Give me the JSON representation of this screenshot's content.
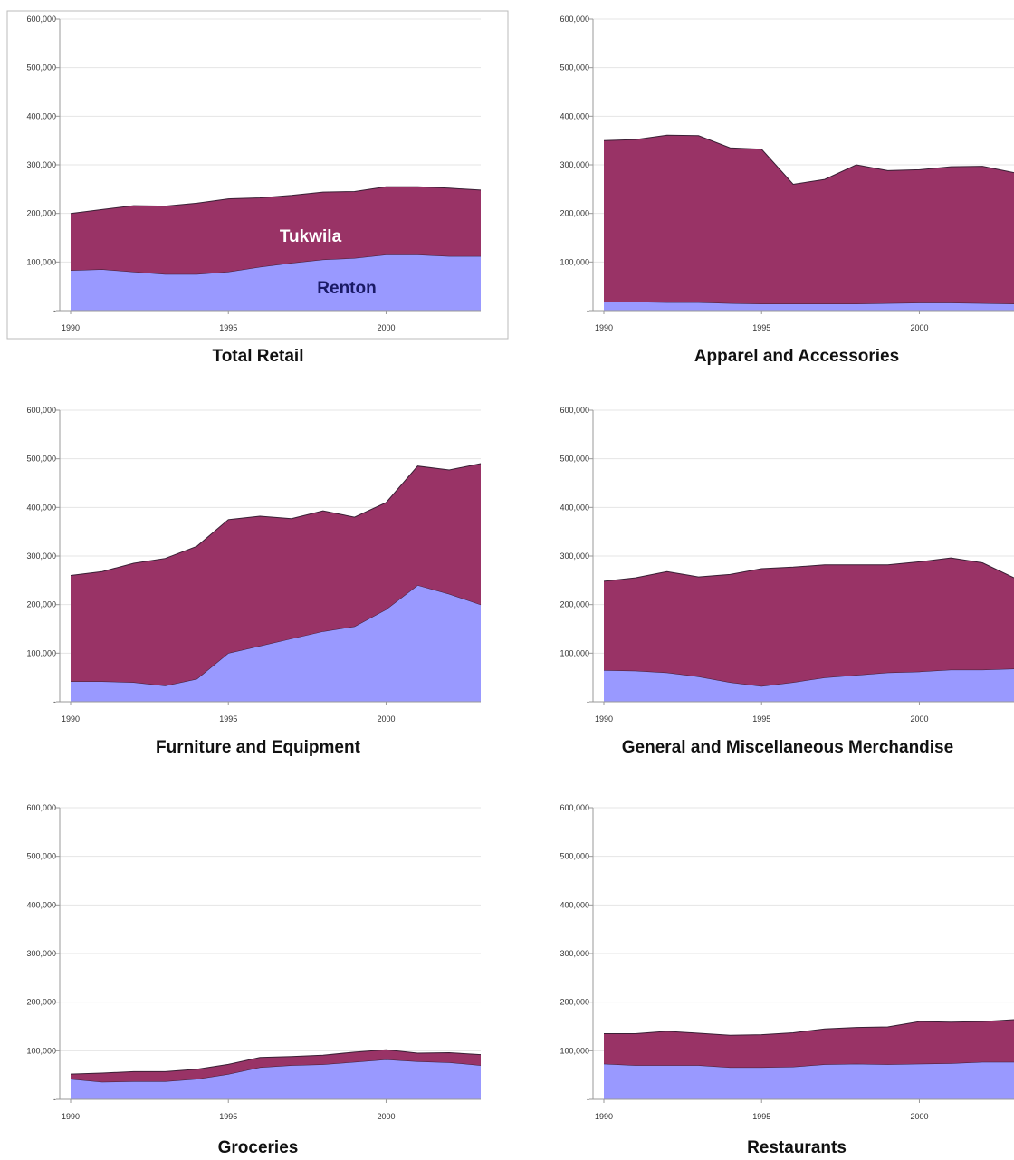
{
  "colors": {
    "renton": "#9999ff",
    "tukwila": "#993366",
    "grid": "#e4e4e4",
    "axis": "#999999",
    "border": "#bbbbbb",
    "label_light": "#ffffff",
    "label_dark": "#1a1a66"
  },
  "axis": {
    "y_ticks": [
      "600,000",
      "500,000",
      "400,000",
      "300,000",
      "200,000",
      "100,000",
      "-"
    ],
    "x_ticks": [
      "1990",
      "1995",
      "2000"
    ]
  },
  "chart_data": [
    {
      "type": "area",
      "stacked": true,
      "title": "Total Retail",
      "x": [
        1990,
        1991,
        1992,
        1993,
        1994,
        1995,
        1996,
        1997,
        1998,
        1999,
        2000,
        2001,
        2002,
        2003
      ],
      "ylim": [
        0,
        600000
      ],
      "grid": true,
      "bordered": true,
      "series": [
        {
          "name": "Renton",
          "values": [
            83000,
            85000,
            80000,
            75000,
            75000,
            80000,
            90000,
            98000,
            105000,
            108000,
            115000,
            115000,
            112000,
            112000
          ]
        },
        {
          "name": "Tukwila",
          "values": [
            117000,
            123000,
            136000,
            140000,
            146000,
            150000,
            142000,
            139000,
            139000,
            137000,
            140000,
            140000,
            140000,
            136000
          ]
        }
      ],
      "annotations": [
        "Tukwila",
        "Renton"
      ]
    },
    {
      "type": "area",
      "stacked": true,
      "title": "Apparel and Accessories",
      "x": [
        1990,
        1991,
        1992,
        1993,
        1994,
        1995,
        1996,
        1997,
        1998,
        1999,
        2000,
        2001,
        2002,
        2003
      ],
      "ylim": [
        0,
        600000
      ],
      "grid": true,
      "series": [
        {
          "name": "Renton",
          "values": [
            18000,
            18000,
            17000,
            17000,
            15000,
            14000,
            14000,
            14000,
            14000,
            15000,
            16000,
            16000,
            15000,
            14000
          ]
        },
        {
          "name": "Tukwila",
          "values": [
            332000,
            334000,
            344000,
            343000,
            320000,
            318000,
            246000,
            256000,
            286000,
            273000,
            274000,
            280000,
            282000,
            270000
          ]
        }
      ]
    },
    {
      "type": "area",
      "stacked": true,
      "title": "Furniture and Equipment",
      "x": [
        1990,
        1991,
        1992,
        1993,
        1994,
        1995,
        1996,
        1997,
        1998,
        1999,
        2000,
        2001,
        2002,
        2003
      ],
      "ylim": [
        0,
        600000
      ],
      "grid": true,
      "series": [
        {
          "name": "Renton",
          "values": [
            42000,
            42000,
            40000,
            33000,
            47000,
            100000,
            115000,
            130000,
            145000,
            155000,
            190000,
            240000,
            222000,
            200000
          ]
        },
        {
          "name": "Tukwila",
          "values": [
            218000,
            226000,
            245000,
            262000,
            273000,
            275000,
            267000,
            247000,
            248000,
            225000,
            220000,
            245000,
            255000,
            290000
          ]
        }
      ]
    },
    {
      "type": "area",
      "stacked": true,
      "title": "General and Miscellaneous Merchandise",
      "x": [
        1990,
        1991,
        1992,
        1993,
        1994,
        1995,
        1996,
        1997,
        1998,
        1999,
        2000,
        2001,
        2002,
        2003
      ],
      "ylim": [
        0,
        600000
      ],
      "grid": true,
      "series": [
        {
          "name": "Renton",
          "values": [
            65000,
            64000,
            60000,
            52000,
            40000,
            32000,
            40000,
            50000,
            55000,
            60000,
            62000,
            66000,
            66000,
            68000
          ]
        },
        {
          "name": "Tukwila",
          "values": [
            183000,
            191000,
            208000,
            205000,
            222000,
            242000,
            237000,
            232000,
            227000,
            222000,
            226000,
            230000,
            220000,
            187000
          ]
        }
      ]
    },
    {
      "type": "area",
      "stacked": true,
      "title": "Groceries",
      "x": [
        1990,
        1991,
        1992,
        1993,
        1994,
        1995,
        1996,
        1997,
        1998,
        1999,
        2000,
        2001,
        2002,
        2003
      ],
      "ylim": [
        0,
        600000
      ],
      "grid": true,
      "series": [
        {
          "name": "Renton",
          "values": [
            42000,
            36000,
            37000,
            37000,
            42000,
            52000,
            66000,
            70000,
            72000,
            77000,
            82000,
            78000,
            76000,
            70000
          ]
        },
        {
          "name": "Tukwila",
          "values": [
            10000,
            18000,
            20000,
            20000,
            20000,
            20000,
            20000,
            18000,
            19000,
            20000,
            20000,
            17000,
            20000,
            22000
          ]
        }
      ]
    },
    {
      "type": "area",
      "stacked": true,
      "title": "Restaurants",
      "x": [
        1990,
        1991,
        1992,
        1993,
        1994,
        1995,
        1996,
        1997,
        1998,
        1999,
        2000,
        2001,
        2002,
        2003
      ],
      "ylim": [
        0,
        600000
      ],
      "grid": true,
      "series": [
        {
          "name": "Renton",
          "values": [
            73000,
            70000,
            70000,
            70000,
            66000,
            66000,
            67000,
            72000,
            73000,
            72000,
            73000,
            74000,
            77000,
            77000
          ]
        },
        {
          "name": "Tukwila",
          "values": [
            62000,
            65000,
            70000,
            66000,
            66000,
            67000,
            70000,
            73000,
            75000,
            77000,
            87000,
            85000,
            83000,
            87000
          ]
        }
      ]
    }
  ]
}
